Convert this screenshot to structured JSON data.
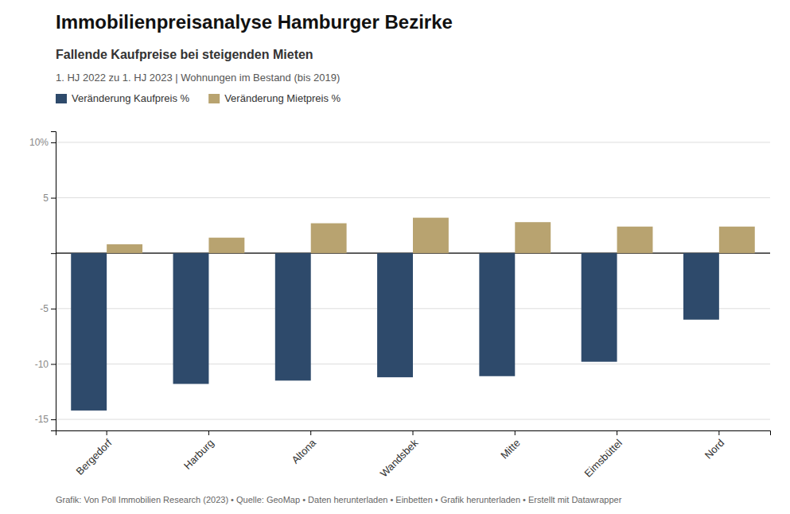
{
  "chart_data": {
    "type": "bar",
    "title": "Immobilienpreisanalyse Hamburger Bezirke",
    "subtitle": "Fallende Kaufpreise bei steigenden Mieten",
    "annotations": [
      "1. HJ 2022 zu 1. HJ 2023 | Wohnungen im Bestand (bis 2019)",
      "Grafik: Von Poll Immobilien Research (2023) • Quelle: GeoMap • Daten herunterladen • Einbetten • Grafik herunterladen • Erstellt mit Datawrapper"
    ],
    "categories": [
      "Bergedorf",
      "Harburg",
      "Altona",
      "Wandsbek",
      "Mitte",
      "Eimsbüttel",
      "Nord"
    ],
    "series": [
      {
        "name": "Veränderung Kaufpreis %",
        "color": "#2E4A6B",
        "values": [
          -14.2,
          -11.8,
          -11.5,
          -11.2,
          -11.1,
          -9.8,
          -6.0
        ]
      },
      {
        "name": "Veränderung Mietpreis %",
        "color": "#B8A370",
        "values": [
          0.8,
          1.4,
          2.7,
          3.2,
          2.8,
          2.4,
          2.4
        ]
      }
    ],
    "ylim": [
      -16,
      11
    ],
    "yticks": [
      -15,
      -10,
      -5,
      {
        "value": 0,
        "label": null
      },
      5,
      {
        "value": 10,
        "label": "10%"
      }
    ],
    "grid": true,
    "legend": "top-left"
  }
}
